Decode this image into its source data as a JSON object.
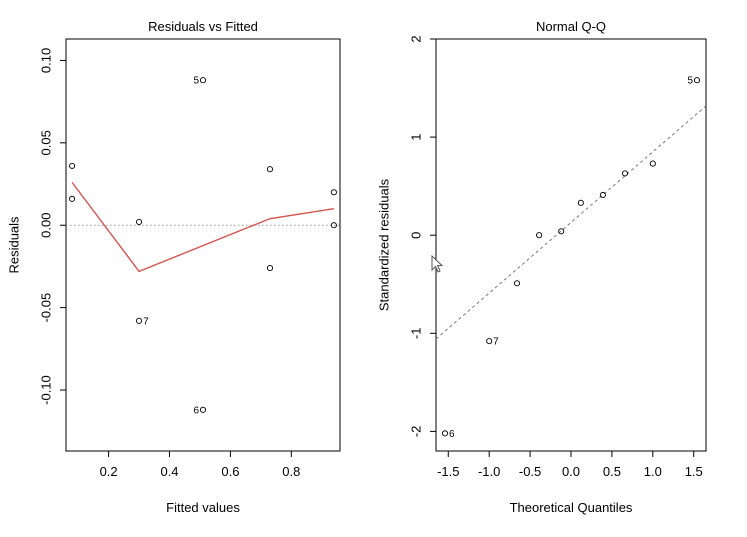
{
  "chart_data": [
    {
      "type": "scatter",
      "title": "Residuals vs Fitted",
      "xlabel": "Fitted values",
      "ylabel": "Residuals",
      "xlim": [
        0.06,
        0.96
      ],
      "ylim": [
        -0.137,
        0.113
      ],
      "xticks": [
        0.2,
        0.4,
        0.6,
        0.8
      ],
      "xtick_labels": [
        "0.2",
        "0.4",
        "0.6",
        "0.8"
      ],
      "yticks": [
        0.1,
        0.05,
        0.0,
        -0.05,
        -0.1
      ],
      "ytick_labels": [
        "0.10",
        "0.05",
        "0.00",
        "-0.05",
        "-0.10"
      ],
      "points": [
        {
          "x": 0.08,
          "y": 0.036,
          "label": ""
        },
        {
          "x": 0.08,
          "y": 0.016,
          "label": ""
        },
        {
          "x": 0.3,
          "y": 0.002,
          "label": ""
        },
        {
          "x": 0.3,
          "y": -0.058,
          "label": "7"
        },
        {
          "x": 0.51,
          "y": 0.088,
          "label": "5"
        },
        {
          "x": 0.51,
          "y": -0.112,
          "label": "6"
        },
        {
          "x": 0.73,
          "y": 0.034,
          "label": ""
        },
        {
          "x": 0.73,
          "y": -0.026,
          "label": ""
        },
        {
          "x": 0.94,
          "y": 0.02,
          "label": ""
        },
        {
          "x": 0.94,
          "y": 0.0,
          "label": ""
        }
      ],
      "smoother": {
        "x": [
          0.08,
          0.3,
          0.73,
          0.94
        ],
        "y": [
          0.026,
          -0.028,
          0.004,
          0.01
        ],
        "color": "#d9534f"
      },
      "reference_line": {
        "y": 0,
        "style": "dotted",
        "color": "#999999"
      }
    },
    {
      "type": "scatter",
      "title": "Normal Q-Q",
      "xlabel": "Theoretical Quantiles",
      "ylabel": "Standardized residuals",
      "xlim": [
        -1.65,
        1.65
      ],
      "ylim": [
        -2.2,
        2.0
      ],
      "xticks": [
        -1.5,
        -1.0,
        -0.5,
        0.0,
        0.5,
        1.0,
        1.5
      ],
      "xtick_labels": [
        "-1.5",
        "-1.0",
        "-0.5",
        "0.0",
        "0.5",
        "1.0",
        "1.5"
      ],
      "yticks": [
        2,
        1,
        0,
        -1,
        -2
      ],
      "ytick_labels": [
        "2",
        "1",
        "0",
        "-1",
        "-2"
      ],
      "points": [
        {
          "x": -1.54,
          "y": -2.02,
          "label": "6"
        },
        {
          "x": -1.0,
          "y": -1.08,
          "label": "7"
        },
        {
          "x": -0.66,
          "y": -0.49,
          "label": ""
        },
        {
          "x": -0.39,
          "y": 0.0,
          "label": ""
        },
        {
          "x": -0.12,
          "y": 0.04,
          "label": ""
        },
        {
          "x": 0.12,
          "y": 0.33,
          "label": ""
        },
        {
          "x": 0.39,
          "y": 0.41,
          "label": ""
        },
        {
          "x": 0.66,
          "y": 0.63,
          "label": ""
        },
        {
          "x": 1.0,
          "y": 0.73,
          "label": ""
        },
        {
          "x": 1.54,
          "y": 1.58,
          "label": "5"
        }
      ],
      "reference_line": {
        "intercept": 0.13,
        "slope": 0.72,
        "style": "dashed",
        "color": "#777777"
      }
    }
  ],
  "cursor_icon": "mouse-pointer-icon"
}
